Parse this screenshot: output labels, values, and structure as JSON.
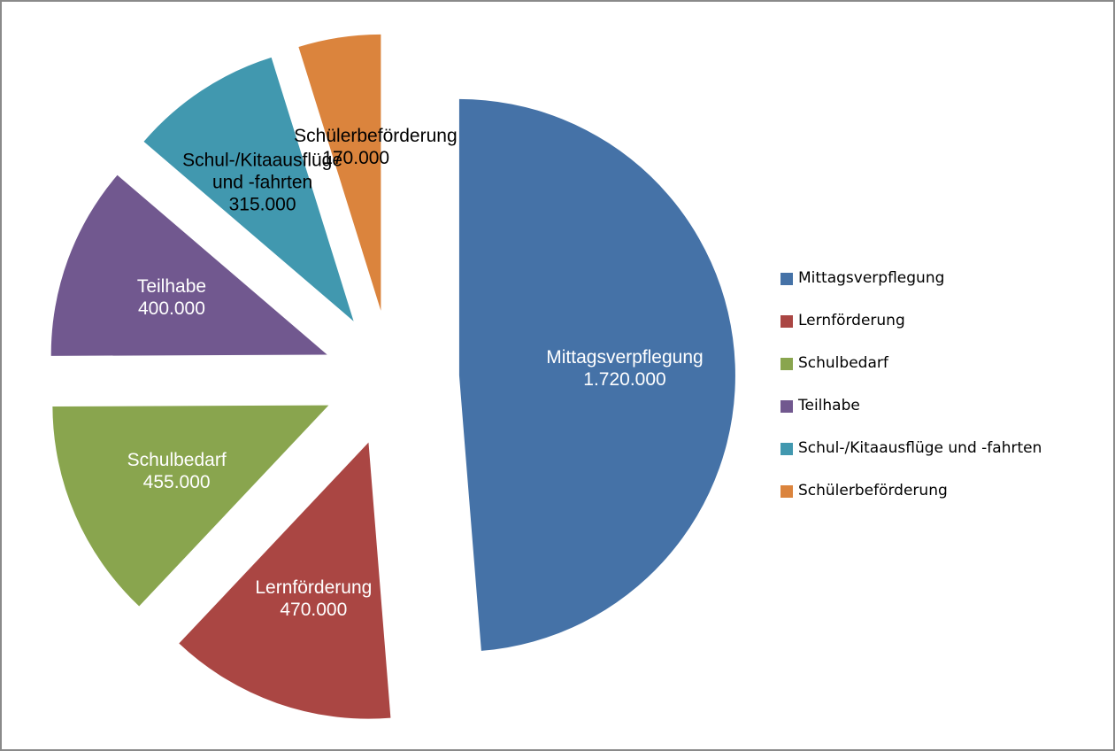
{
  "chart_data": {
    "type": "pie",
    "categories": [
      "Mittagsverpflegung",
      "Lernförderung",
      "Schulbedarf",
      "Teilhabe",
      "Schul-/Kitaausflüge und -fahrten",
      "Schülerbeförderung"
    ],
    "values": [
      1720000,
      470000,
      455000,
      400000,
      315000,
      170000
    ],
    "value_labels": [
      "1.720.000",
      "470.000",
      "455.000",
      "400.000",
      "315.000",
      "170.000"
    ],
    "colors": [
      "#4572a7",
      "#aa4643",
      "#89a54e",
      "#71588f",
      "#4198af",
      "#db843d"
    ],
    "legend": "right"
  }
}
